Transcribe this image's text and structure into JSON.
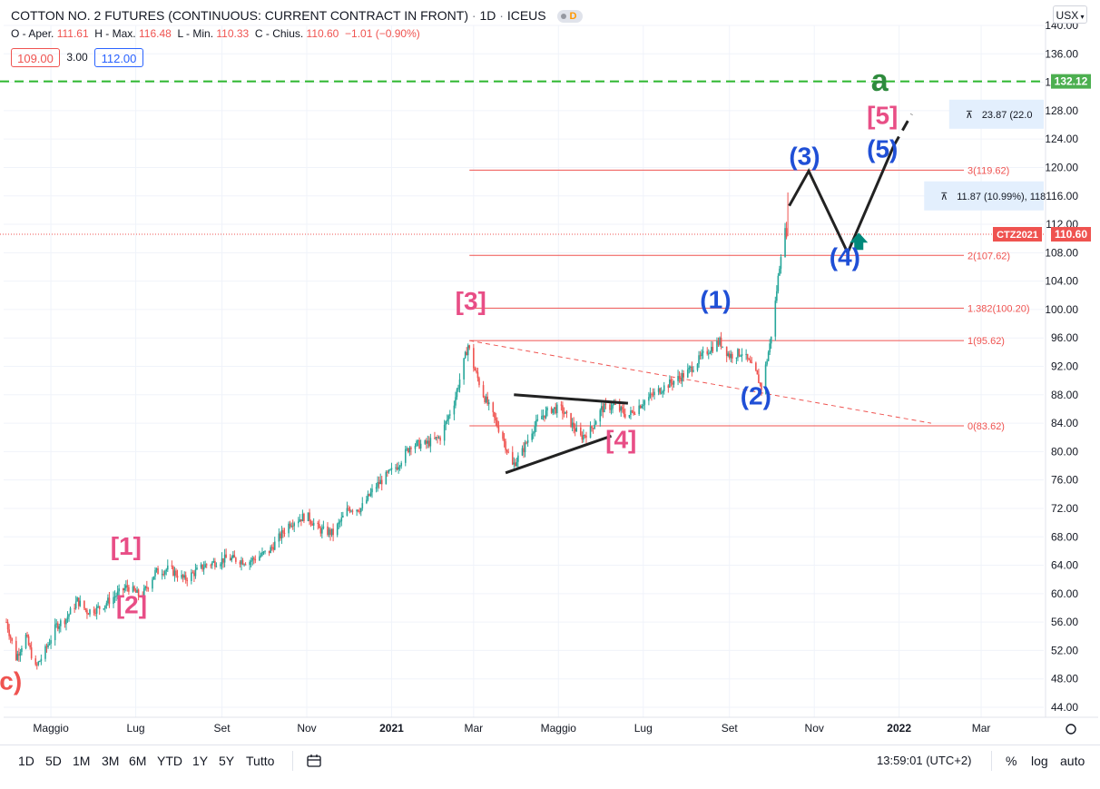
{
  "header": {
    "title": "COTTON NO. 2 FUTURES (CONTINUOUS: CURRENT CONTRACT IN FRONT)",
    "interval": "1D",
    "exchange": "ICEUS",
    "badge": "D"
  },
  "ohlc": {
    "open_label": "O - Aper.",
    "open": "111.61",
    "high_label": "H - Max.",
    "high": "116.48",
    "low_label": "L - Min.",
    "low": "110.33",
    "close_label": "C - Chius.",
    "close": "110.60",
    "change": "−1.01 (−0.90%)"
  },
  "quote": {
    "bid": "109.00",
    "spread": "3.00",
    "ask": "112.00"
  },
  "currency": "USX",
  "toolbar": {
    "ranges": [
      "1D",
      "5D",
      "1M",
      "3M",
      "6M",
      "YTD",
      "1Y",
      "5Y",
      "Tutto"
    ],
    "time": "13:59:01 (UTC+2)",
    "percent": "%",
    "log": "log",
    "auto": "auto"
  },
  "colors": {
    "up": "#26a69a",
    "down": "#ef5350",
    "level_line": "#ef5350",
    "pink_label": "#e84e86",
    "blue_label": "#1f4fd6",
    "green_label": "#2e8b3d",
    "dashed_target": "#2eb82e",
    "proj_arrow": "#00897b",
    "axis_text": "#131722"
  },
  "chart_data": {
    "type": "candlestick",
    "y_axis": {
      "range": [
        42,
        145
      ],
      "ticks": [
        "44.00",
        "48.00",
        "52.00",
        "56.00",
        "60.00",
        "64.00",
        "68.00",
        "72.00",
        "76.00",
        "80.00",
        "84.00",
        "88.00",
        "92.00",
        "96.00",
        "100.00",
        "104.00",
        "108.00",
        "112.00",
        "116.00",
        "120.00",
        "124.00",
        "128.00",
        "132.00",
        "136.00",
        "140.00"
      ]
    },
    "x_axis": {
      "range": [
        "2020-03-28",
        "2022-04-15"
      ],
      "ticks": [
        {
          "date": "2020-05-01",
          "label": "Maggio",
          "bold": false
        },
        {
          "date": "2020-07-01",
          "label": "Lug",
          "bold": false
        },
        {
          "date": "2020-09-01",
          "label": "Set",
          "bold": false
        },
        {
          "date": "2020-11-01",
          "label": "Nov",
          "bold": false
        },
        {
          "date": "2021-01-01",
          "label": "2021",
          "bold": true
        },
        {
          "date": "2021-03-01",
          "label": "Mar",
          "bold": false
        },
        {
          "date": "2021-05-01",
          "label": "Maggio",
          "bold": false
        },
        {
          "date": "2021-07-01",
          "label": "Lug",
          "bold": false
        },
        {
          "date": "2021-09-01",
          "label": "Set",
          "bold": false
        },
        {
          "date": "2021-11-01",
          "label": "Nov",
          "bold": false
        },
        {
          "date": "2022-01-01",
          "label": "2022",
          "bold": true
        },
        {
          "date": "2022-03-01",
          "label": "Mar",
          "bold": false
        }
      ]
    },
    "price_path": [
      [
        "2020-03-30",
        56
      ],
      [
        "2020-04-06",
        51
      ],
      [
        "2020-04-13",
        54
      ],
      [
        "2020-04-20",
        49.5
      ],
      [
        "2020-04-27",
        52
      ],
      [
        "2020-05-05",
        55.5
      ],
      [
        "2020-05-12",
        56.5
      ],
      [
        "2020-05-20",
        59
      ],
      [
        "2020-05-27",
        57.5
      ],
      [
        "2020-06-05",
        58
      ],
      [
        "2020-06-15",
        59.5
      ],
      [
        "2020-06-25",
        61
      ],
      [
        "2020-07-05",
        59.5
      ],
      [
        "2020-07-15",
        63
      ],
      [
        "2020-07-25",
        63.5
      ],
      [
        "2020-08-05",
        62
      ],
      [
        "2020-08-20",
        64
      ],
      [
        "2020-09-05",
        65
      ],
      [
        "2020-09-20",
        64.5
      ],
      [
        "2020-10-05",
        66
      ],
      [
        "2020-10-20",
        70
      ],
      [
        "2020-11-01",
        71
      ],
      [
        "2020-11-10",
        69
      ],
      [
        "2020-11-20",
        68.5
      ],
      [
        "2020-12-01",
        72
      ],
      [
        "2020-12-10",
        72
      ],
      [
        "2020-12-20",
        75
      ],
      [
        "2021-01-05",
        78
      ],
      [
        "2021-01-15",
        81
      ],
      [
        "2021-01-25",
        81
      ],
      [
        "2021-02-05",
        82
      ],
      [
        "2021-02-15",
        87
      ],
      [
        "2021-02-25",
        95
      ],
      [
        "2021-03-01",
        92
      ],
      [
        "2021-03-08",
        88
      ],
      [
        "2021-03-15",
        85
      ],
      [
        "2021-03-22",
        82
      ],
      [
        "2021-03-29",
        78
      ],
      [
        "2021-04-05",
        80
      ],
      [
        "2021-04-12",
        83
      ],
      [
        "2021-04-19",
        85
      ],
      [
        "2021-04-26",
        86
      ],
      [
        "2021-05-03",
        86
      ],
      [
        "2021-05-10",
        84
      ],
      [
        "2021-05-17",
        82
      ],
      [
        "2021-05-24",
        83
      ],
      [
        "2021-06-01",
        86
      ],
      [
        "2021-06-10",
        86.5
      ],
      [
        "2021-06-20",
        85
      ],
      [
        "2021-07-01",
        87
      ],
      [
        "2021-07-15",
        89
      ],
      [
        "2021-08-01",
        91
      ],
      [
        "2021-08-15",
        94
      ],
      [
        "2021-08-25",
        95.5
      ],
      [
        "2021-09-01",
        93.5
      ],
      [
        "2021-09-10",
        94
      ],
      [
        "2021-09-20",
        91
      ],
      [
        "2021-09-24",
        89
      ],
      [
        "2021-09-30",
        95
      ],
      [
        "2021-10-04",
        101
      ],
      [
        "2021-10-08",
        108
      ],
      [
        "2021-10-11",
        111
      ],
      [
        "2021-10-13",
        110.6
      ]
    ],
    "levels": [
      {
        "ratio": "3",
        "value": 119.62,
        "label": "3(119.62)"
      },
      {
        "ratio": "2",
        "value": 107.62,
        "label": "2(107.62)"
      },
      {
        "ratio": "1.382",
        "value": 100.2,
        "label": "1.382(100.20)"
      },
      {
        "ratio": "1",
        "value": 95.62,
        "label": "1(95.62)"
      },
      {
        "ratio": "0",
        "value": 83.62,
        "label": "0(83.62)"
      }
    ],
    "target_line": {
      "value": 132.12,
      "label": "132.12"
    },
    "last_price": {
      "value": 110.6,
      "symbol": "CTZ2021",
      "label": "110.60"
    },
    "wave_labels": [
      {
        "text": "(c)",
        "date": "2020-03-30",
        "price": 46.5,
        "color": "red"
      },
      {
        "text": "[1]",
        "date": "2020-06-24",
        "price": 65.5,
        "color": "pink"
      },
      {
        "text": "[2]",
        "date": "2020-06-28",
        "price": 57.2,
        "color": "pink"
      },
      {
        "text": "[3]",
        "date": "2021-02-27",
        "price": 100,
        "color": "pink"
      },
      {
        "text": "[4]",
        "date": "2021-06-15",
        "price": 80.5,
        "color": "pink"
      },
      {
        "text": "(1)",
        "date": "2021-08-22",
        "price": 100.2,
        "color": "blue"
      },
      {
        "text": "(2)",
        "date": "2021-09-20",
        "price": 86.6,
        "color": "blue"
      },
      {
        "text": "(3)",
        "date": "2021-10-25",
        "price": 120.4,
        "color": "blue"
      },
      {
        "text": "(4)",
        "date": "2021-11-23",
        "price": 106.2,
        "color": "blue"
      },
      {
        "text": "(5)",
        "date": "2021-12-20",
        "price": 121.4,
        "color": "blue"
      },
      {
        "text": "[5]",
        "date": "2021-12-20",
        "price": 126.1,
        "color": "pink"
      },
      {
        "text": "a",
        "date": "2021-12-18",
        "price": 130.8,
        "color": "green"
      }
    ],
    "projection_path": [
      [
        "2021-10-14",
        114.6
      ],
      [
        "2021-10-28",
        119.5
      ],
      [
        "2021-11-25",
        108
      ],
      [
        "2021-12-28",
        123
      ]
    ],
    "projection_tail": [
      [
        "2021-12-28",
        123
      ],
      [
        "2022-01-10",
        127.5
      ]
    ],
    "triangle_lines": [
      [
        [
          "2021-03-24",
          77
        ],
        [
          "2021-06-08",
          82.2
        ]
      ],
      [
        [
          "2021-03-30",
          88
        ],
        [
          "2021-06-20",
          86.8
        ]
      ]
    ],
    "trend_line": [
      [
        "2021-02-26",
        95.62
      ],
      [
        "2022-01-24",
        84
      ]
    ],
    "measure_boxes": [
      {
        "text": "11.87 (10.99%), 118",
        "date": "2022-01-19",
        "price": 116
      },
      {
        "text": "23.87 (22.0",
        "date": "2022-02-06",
        "price": 127.5
      }
    ]
  }
}
